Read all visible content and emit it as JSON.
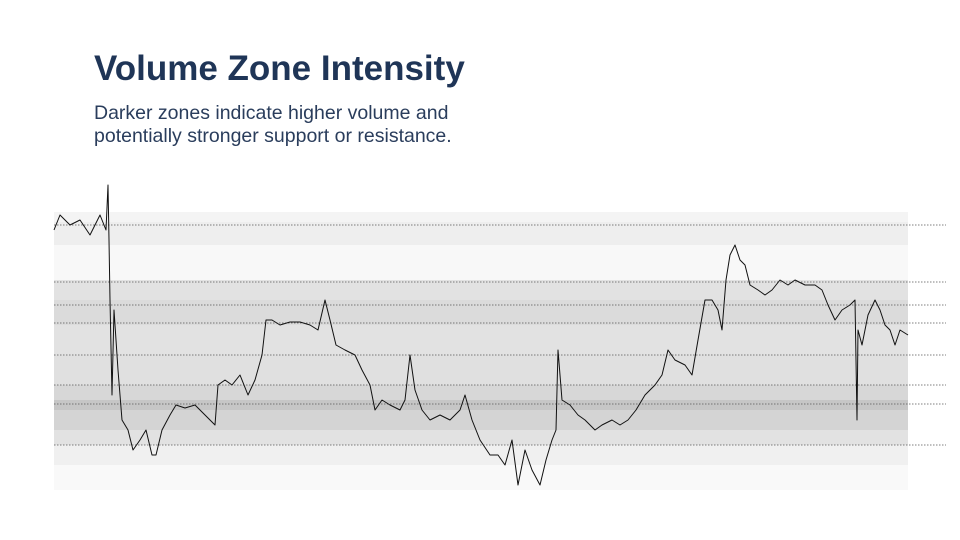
{
  "chart_data": {
    "type": "line",
    "title": "Volume Zone Intensity",
    "subtitle": [
      "Darker zones indicate higher volume and",
      "potentially stronger support or resistance."
    ],
    "color": "#111111",
    "zone_color": "#707070",
    "level_color": "#555555",
    "xlim": [
      0,
      854
    ],
    "ylim": [
      0,
      310
    ],
    "x": [
      0,
      6,
      16,
      26,
      36,
      46,
      52,
      54,
      55,
      56,
      58,
      60,
      64,
      68,
      74,
      79,
      86,
      92,
      98,
      102,
      108,
      116,
      122,
      131,
      141,
      151,
      161,
      164,
      171,
      178,
      186,
      194,
      201,
      208,
      212,
      218,
      226,
      236,
      246,
      256,
      264,
      271,
      276,
      282,
      291,
      301,
      308,
      316,
      321,
      328,
      336,
      346,
      351,
      356,
      361,
      368,
      376,
      386,
      396,
      406,
      411,
      418,
      426,
      436,
      444,
      451,
      458,
      464,
      471,
      478,
      486,
      492,
      498,
      502,
      504,
      508,
      516,
      524,
      531,
      541,
      548,
      558,
      566,
      574,
      582,
      591,
      601,
      608,
      614,
      621,
      631,
      638,
      644,
      651,
      658,
      664,
      668,
      672,
      676,
      681,
      686,
      691,
      696,
      704,
      711,
      718,
      726,
      734,
      741,
      751,
      761,
      768,
      774,
      781,
      788,
      796,
      801,
      803,
      804,
      808,
      814,
      821,
      826,
      831,
      836,
      841,
      846,
      854
    ],
    "values": [
      260,
      275,
      265,
      270,
      255,
      275,
      260,
      305,
      250,
      190,
      95,
      180,
      120,
      70,
      60,
      40,
      50,
      60,
      35,
      35,
      60,
      75,
      85,
      82,
      85,
      75,
      65,
      105,
      110,
      105,
      115,
      95,
      110,
      135,
      170,
      170,
      165,
      168,
      168,
      165,
      160,
      190,
      170,
      145,
      140,
      135,
      120,
      105,
      80,
      90,
      85,
      80,
      90,
      135,
      100,
      80,
      70,
      75,
      70,
      80,
      95,
      70,
      50,
      35,
      35,
      25,
      50,
      5,
      40,
      20,
      5,
      30,
      50,
      60,
      140,
      90,
      85,
      75,
      70,
      60,
      65,
      70,
      65,
      70,
      80,
      95,
      105,
      115,
      140,
      130,
      125,
      115,
      150,
      190,
      190,
      180,
      160,
      210,
      235,
      245,
      230,
      225,
      205,
      200,
      195,
      200,
      210,
      205,
      210,
      205,
      205,
      200,
      185,
      170,
      180,
      185,
      190,
      70,
      160,
      145,
      175,
      190,
      180,
      165,
      160,
      145,
      160,
      155
    ],
    "zones": [
      {
        "low": 268,
        "high": 278,
        "intensity": 0.08
      },
      {
        "low": 245,
        "high": 268,
        "intensity": 0.12
      },
      {
        "low": 210,
        "high": 245,
        "intensity": 0.05
      },
      {
        "low": 190,
        "high": 210,
        "intensity": 0.2
      },
      {
        "low": 165,
        "high": 190,
        "intensity": 0.25
      },
      {
        "low": 135,
        "high": 165,
        "intensity": 0.2
      },
      {
        "low": 105,
        "high": 135,
        "intensity": 0.22
      },
      {
        "low": 90,
        "high": 105,
        "intensity": 0.28
      },
      {
        "low": 80,
        "high": 90,
        "intensity": 0.4
      },
      {
        "low": 60,
        "high": 80,
        "intensity": 0.3
      },
      {
        "low": 45,
        "high": 60,
        "intensity": 0.2
      },
      {
        "low": 25,
        "high": 45,
        "intensity": 0.1
      },
      {
        "low": 0,
        "high": 25,
        "intensity": 0.04
      }
    ],
    "levels": [
      265,
      208,
      185,
      167,
      135,
      105,
      86,
      45
    ]
  }
}
